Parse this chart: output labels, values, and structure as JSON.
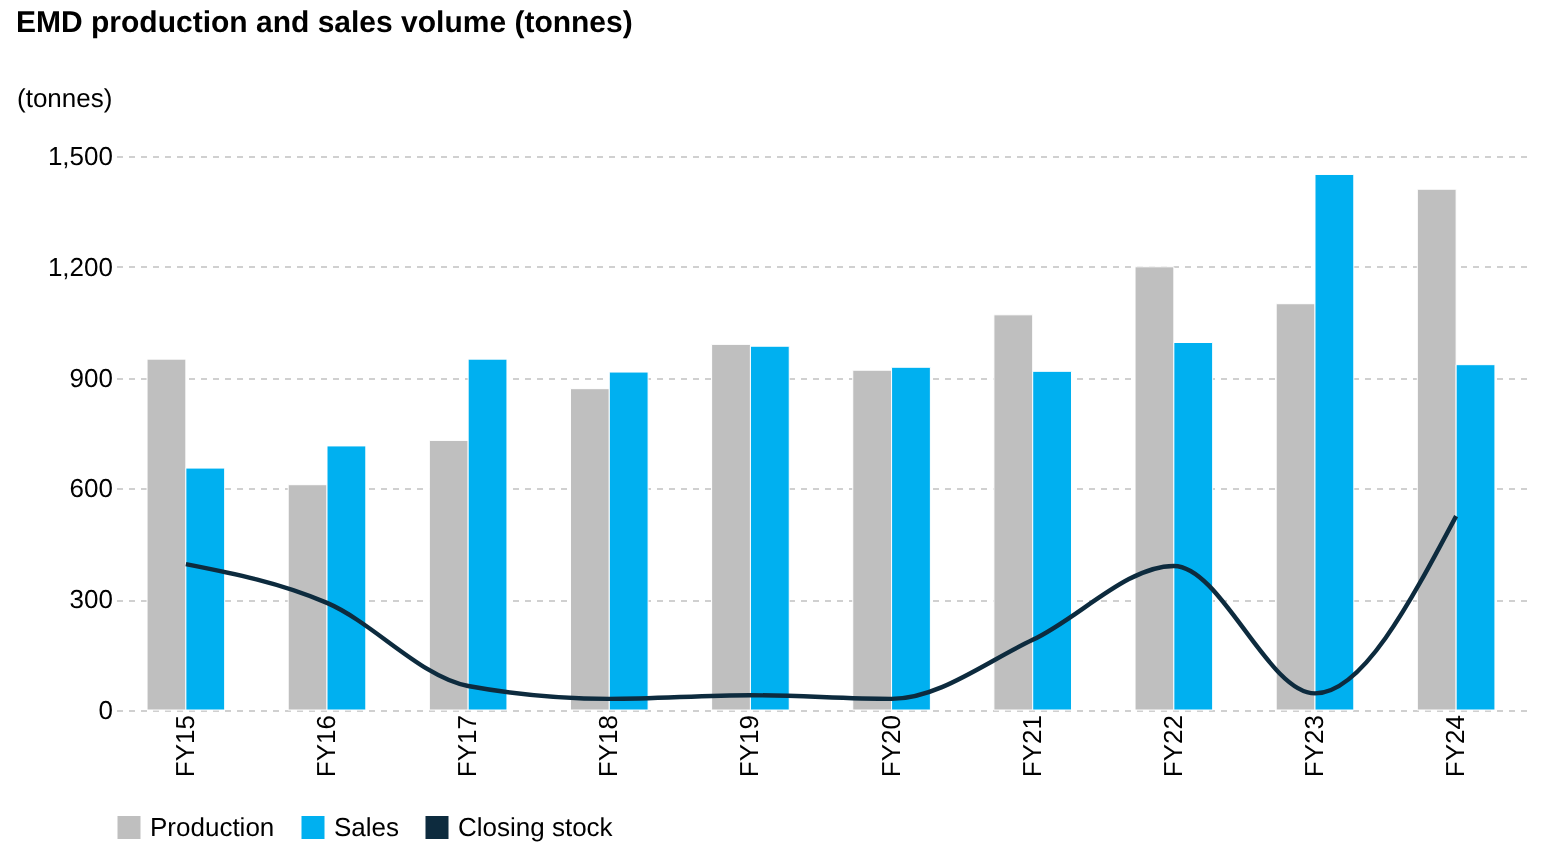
{
  "chart_data": {
    "type": "bar",
    "title": "EMD production and sales volume (tonnes)",
    "ylabel": "(tonnes)",
    "categories": [
      "FY15",
      "FY16",
      "FY17",
      "FY18",
      "FY19",
      "FY20",
      "FY21",
      "FY22",
      "FY23",
      "FY24"
    ],
    "series": [
      {
        "name": "Production",
        "color": "#bfbfbf",
        "values": [
          950,
          610,
          730,
          870,
          990,
          920,
          1070,
          1200,
          1100,
          1410
        ]
      },
      {
        "name": "Sales",
        "color": "#00b0f0",
        "values": [
          655,
          715,
          950,
          915,
          985,
          928,
          917,
          995,
          1450,
          935
        ]
      },
      {
        "name": "Closing stock",
        "type": "line",
        "color": "#0d2b3e",
        "values": [
          395,
          290,
          65,
          30,
          40,
          30,
          190,
          390,
          45,
          525
        ]
      }
    ],
    "ylim": [
      0,
      1500
    ],
    "yticks": [
      0,
      300,
      600,
      900,
      {
        "value": 1200,
        "label": "1,200"
      },
      {
        "value": 1500,
        "label": "1,500"
      }
    ],
    "grid": "y",
    "legend": "bottom",
    "marker": "none"
  }
}
